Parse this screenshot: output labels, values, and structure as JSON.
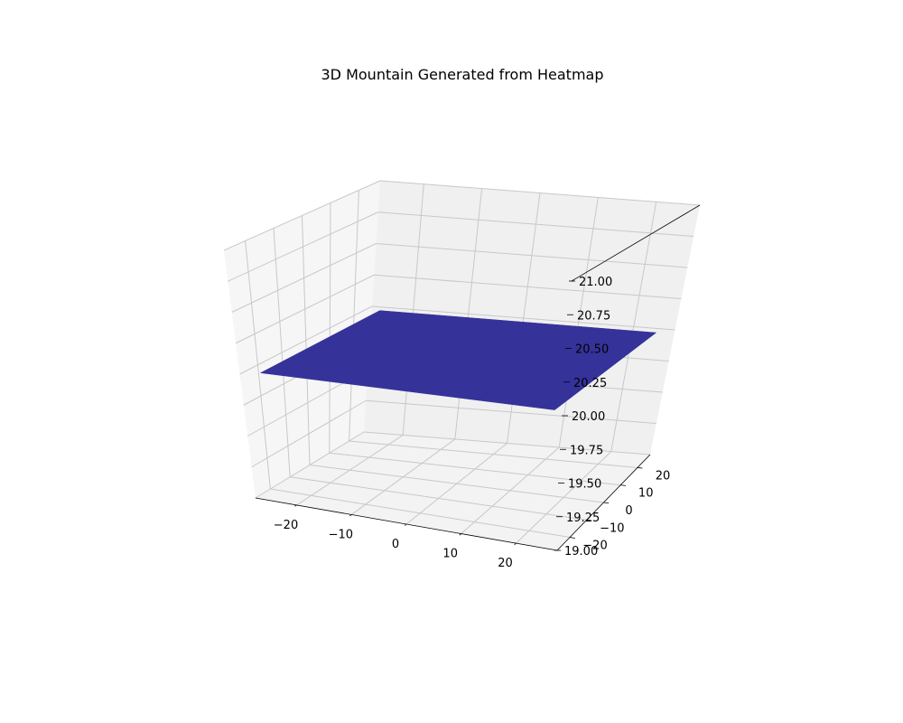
{
  "colors": {
    "surface": "#35329a",
    "pane_back": "#f0f0f0",
    "pane_side": "#f6f6f6",
    "pane_floor": "#f3f3f3",
    "grid": "#c8c8c8",
    "axis": "#000000"
  },
  "chart_data": {
    "type": "surface3d",
    "title": "3D Mountain Generated from Heatmap",
    "xlabel": "",
    "ylabel": "",
    "zlabel": "",
    "x_range": [
      -25,
      25
    ],
    "y_range": [
      -25,
      25
    ],
    "z_value": 20.0,
    "xlim": [
      -27.5,
      27.5
    ],
    "ylim": [
      -27.5,
      27.5
    ],
    "zlim": [
      19.0,
      21.0
    ],
    "x_ticks": [
      -20,
      -10,
      0,
      10,
      20
    ],
    "x_tick_labels": [
      "−20",
      "−10",
      "0",
      "10",
      "20"
    ],
    "y_ticks": [
      -20,
      -10,
      0,
      10,
      20
    ],
    "y_tick_labels": [
      "−20",
      "−10",
      "0",
      "10",
      "20"
    ],
    "z_ticks": [
      19.0,
      19.25,
      19.5,
      19.75,
      20.0,
      20.25,
      20.5,
      20.75,
      21.0
    ],
    "z_tick_labels": [
      "19.00",
      "19.25",
      "19.50",
      "19.75",
      "20.00",
      "20.25",
      "20.50",
      "20.75",
      "21.00"
    ],
    "grid": true
  }
}
